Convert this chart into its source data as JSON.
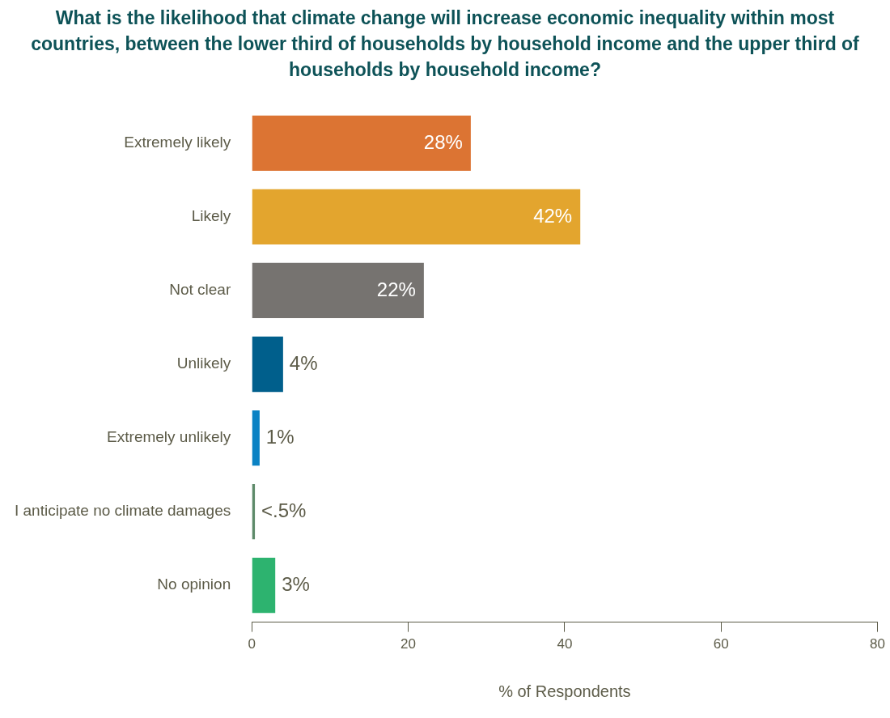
{
  "chart_data": {
    "type": "bar",
    "orientation": "horizontal",
    "title": "What is the likelihood that climate change will increase economic inequality within most countries, between the lower third of households by household income and the upper third of households by household income?",
    "xlabel": "% of Respondents",
    "categories": [
      "Extremely likely",
      "Likely",
      "Not clear",
      "Unlikely",
      "Extremely unlikely",
      "I anticipate no climate damages",
      "No opinion"
    ],
    "values": [
      28,
      42,
      22,
      4,
      1,
      0.4,
      3
    ],
    "colors": [
      "#dc7433",
      "#e3a52e",
      "#767370",
      "#005f8c",
      "#0a82c4",
      "#5e8a6a",
      "#2db36f"
    ],
    "value_labels": [
      "28%",
      "42%",
      "22%",
      "4%",
      "1%",
      "<.5%",
      "3%"
    ],
    "xlim": [
      0,
      80
    ],
    "xticks": [
      0,
      20,
      40,
      60,
      80
    ]
  }
}
